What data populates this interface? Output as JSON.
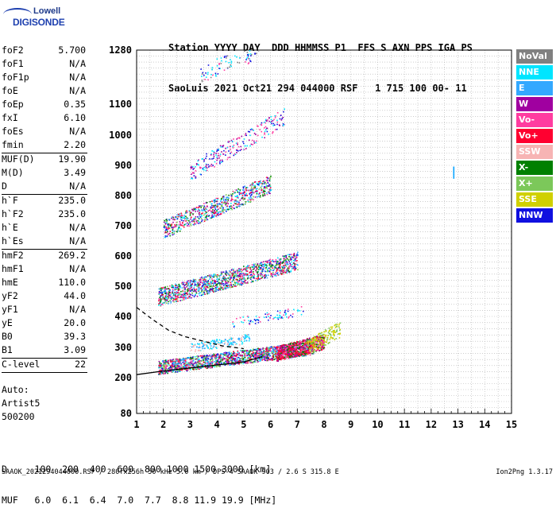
{
  "logo": {
    "line1": "Lowell",
    "line2": "DIGISONDE"
  },
  "header": {
    "row1": "Station YYYY DAY  DDD HHMMSS P1  FFS S AXN PPS IGA PS",
    "row2": "SaoLuis 2021 Oct21 294 044000 RSF   1 715 100 00- 11"
  },
  "params": [
    {
      "k": "foF2",
      "v": "5.700"
    },
    {
      "k": "foF1",
      "v": "N/A"
    },
    {
      "k": "foF1p",
      "v": "N/A"
    },
    {
      "k": "foE",
      "v": "N/A"
    },
    {
      "k": "foEp",
      "v": "0.35"
    },
    {
      "k": "fxI",
      "v": "6.10"
    },
    {
      "k": "foEs",
      "v": "N/A"
    },
    {
      "k": "fmin",
      "v": "2.20"
    },
    {
      "k": "MUF(D)",
      "v": "19.90"
    },
    {
      "k": "M(D)",
      "v": "3.49"
    },
    {
      "k": "D",
      "v": "N/A"
    },
    {
      "k": "h`F",
      "v": "235.0"
    },
    {
      "k": "h`F2",
      "v": "235.0"
    },
    {
      "k": "h`E",
      "v": "N/A"
    },
    {
      "k": "h`Es",
      "v": "N/A"
    },
    {
      "k": "hmF2",
      "v": "269.2"
    },
    {
      "k": "hmF1",
      "v": "N/A"
    },
    {
      "k": "hmE",
      "v": "110.0"
    },
    {
      "k": "yF2",
      "v": "44.0"
    },
    {
      "k": "yF1",
      "v": "N/A"
    },
    {
      "k": "yE",
      "v": "20.0"
    },
    {
      "k": "B0",
      "v": "39.3"
    },
    {
      "k": "B1",
      "v": "3.09"
    },
    {
      "k": "C-level",
      "v": "22"
    }
  ],
  "auto": {
    "line1": "Auto:",
    "line2": "Artist5",
    "line3": "500200"
  },
  "legend": [
    {
      "label": "NoVal",
      "color": "#808080"
    },
    {
      "label": "NNE",
      "color": "#00e5ff"
    },
    {
      "label": "E",
      "color": "#33a8ff"
    },
    {
      "label": "W",
      "color": "#a000a0"
    },
    {
      "label": "Vo-",
      "color": "#ff3ca0"
    },
    {
      "label": "Vo+",
      "color": "#ff0030"
    },
    {
      "label": "SSW",
      "color": "#f7b4b4"
    },
    {
      "label": "X-",
      "color": "#008000"
    },
    {
      "label": "X+",
      "color": "#7cc85a"
    },
    {
      "label": "SSE",
      "color": "#d0d000"
    },
    {
      "label": "NNW",
      "color": "#1010e0"
    }
  ],
  "dtable": {
    "row1": "D     100  200  400  600  800 1000 1500 3000 [km]",
    "row2": "MUF   6.0  6.1  6.4  7.0  7.7  8.8 11.9 19.9 [MHz]"
  },
  "footer": "SAAOK_2021294044000.RSF / 280fx256h 50 kHz 5.0 km / DPS-4 SAAOK 903 / 2.6 S 315.8 E",
  "version": "Ion2Png 1.3.17",
  "chart_data": {
    "type": "scatter",
    "x_ticks": [
      "1",
      "2",
      "3",
      "4",
      "5",
      "6",
      "7",
      "8",
      "9",
      "10",
      "11",
      "12",
      "13",
      "14",
      "15"
    ],
    "y_ticks": [
      "80",
      "200",
      "300",
      "400",
      "500",
      "600",
      "700",
      "800",
      "900",
      "1000",
      "1100",
      "1280"
    ],
    "x_range": [
      1,
      15
    ],
    "y_range": [
      80,
      1280
    ],
    "grid": true,
    "series": [
      {
        "name": "trace",
        "color": "#000000",
        "x": [
          1.0,
          2.0,
          3.0,
          4.0,
          5.0,
          5.7
        ],
        "y": [
          210,
          222,
          232,
          242,
          252,
          270
        ]
      },
      {
        "name": "dashed",
        "color": "#000000",
        "x": [
          1.0,
          1.6,
          2.2,
          2.8,
          3.5,
          4.2,
          5.0
        ],
        "y": [
          430,
          390,
          355,
          335,
          320,
          305,
          296
        ]
      }
    ]
  }
}
